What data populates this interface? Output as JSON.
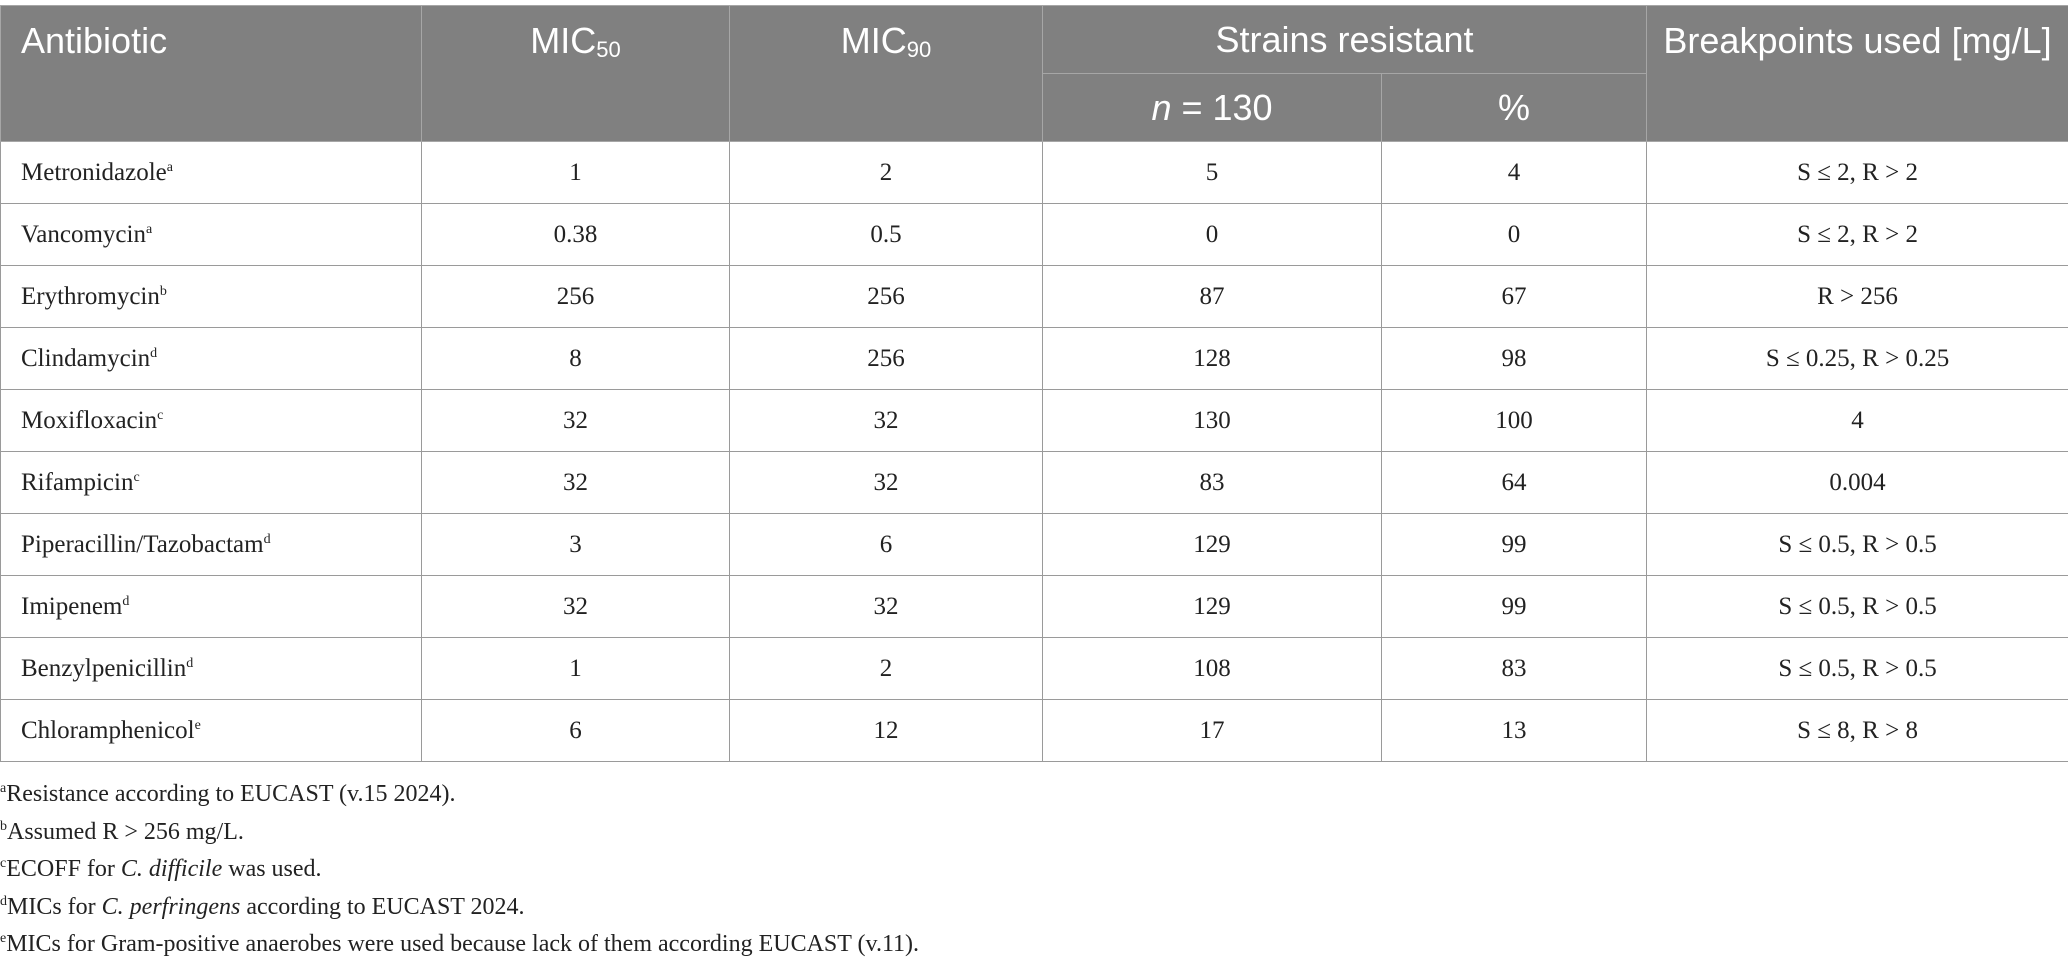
{
  "header": {
    "antibiotic": "Antibiotic",
    "mic50": {
      "text": "MIC",
      "sub": "50"
    },
    "mic90": {
      "text": "MIC",
      "sub": "90"
    },
    "strains_resistant": "Strains resistant",
    "n": {
      "var": "n",
      "text": "= 130"
    },
    "percent": "%",
    "breakpoints": "Breakpoints used [mg/L]"
  },
  "rows": [
    {
      "antibiotic": "Metronidazole",
      "note": "a",
      "mic50": 1,
      "mic90": 2,
      "n": 5,
      "percent": 4,
      "breakpoints": "S ≤ 2, R > 2"
    },
    {
      "antibiotic": "Vancomycin",
      "note": "a",
      "mic50": 0.38,
      "mic90": 0.5,
      "n": 0,
      "percent": 0,
      "breakpoints": "S ≤ 2, R > 2"
    },
    {
      "antibiotic": "Erythromycin",
      "note": "b",
      "mic50": 256,
      "mic90": 256,
      "n": 87,
      "percent": 67,
      "breakpoints": "R > 256"
    },
    {
      "antibiotic": "Clindamycin",
      "note": "d",
      "mic50": 8,
      "mic90": 256,
      "n": 128,
      "percent": 98,
      "breakpoints": "S ≤ 0.25, R > 0.25"
    },
    {
      "antibiotic": "Moxifloxacin",
      "note": "c",
      "mic50": 32,
      "mic90": 32,
      "n": 130,
      "percent": 100,
      "breakpoints": "4"
    },
    {
      "antibiotic": "Rifampicin",
      "note": "c",
      "mic50": 32,
      "mic90": 32,
      "n": 83,
      "percent": 64,
      "breakpoints": "0.004"
    },
    {
      "antibiotic": "Piperacillin/Tazobactam",
      "note": "d",
      "mic50": 3,
      "mic90": 6,
      "n": 129,
      "percent": 99,
      "breakpoints": "S ≤ 0.5, R > 0.5"
    },
    {
      "antibiotic": "Imipenem",
      "note": "d",
      "mic50": 32,
      "mic90": 32,
      "n": 129,
      "percent": 99,
      "breakpoints": "S ≤ 0.5, R > 0.5"
    },
    {
      "antibiotic": "Benzylpenicillin",
      "note": "d",
      "mic50": 1,
      "mic90": 2,
      "n": 108,
      "percent": 83,
      "breakpoints": "S ≤ 0.5, R > 0.5"
    },
    {
      "antibiotic": "Chloramphenicol",
      "note": "e",
      "mic50": 6,
      "mic90": 12,
      "n": 17,
      "percent": 13,
      "breakpoints": "S ≤ 8, R > 8"
    }
  ],
  "footnotes": [
    {
      "mark": "a",
      "parts": [
        {
          "text": "Resistance according to EUCAST (v.15 2024)."
        }
      ]
    },
    {
      "mark": "b",
      "parts": [
        {
          "text": "Assumed R > 256 mg/L."
        }
      ]
    },
    {
      "mark": "c",
      "parts": [
        {
          "text": "ECOFF for "
        },
        {
          "text": "C. difficile",
          "italic": true
        },
        {
          "text": " was used."
        }
      ]
    },
    {
      "mark": "d",
      "parts": [
        {
          "text": "MICs for "
        },
        {
          "text": "C. perfringens",
          "italic": true
        },
        {
          "text": " according to EUCAST 2024."
        }
      ]
    },
    {
      "mark": "e",
      "parts": [
        {
          "text": "MICs for Gram-positive anaerobes were used because lack of them according EUCAST (v.11)."
        }
      ]
    }
  ]
}
